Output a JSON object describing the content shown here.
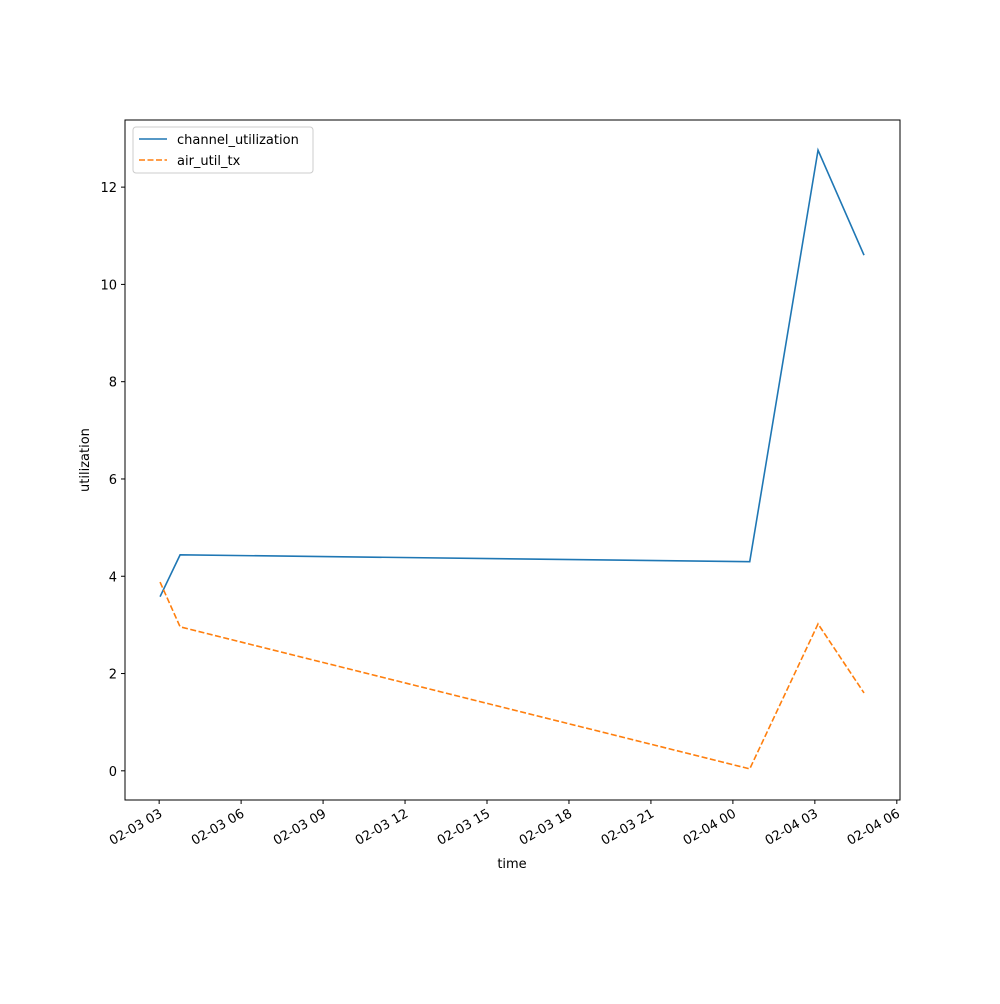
{
  "chart_data": {
    "type": "line",
    "xlabel": "time",
    "ylabel": "utilization",
    "x": [
      "02-03 03:02",
      "02-03 03:46",
      "02-04 00:37",
      "02-04 03:07",
      "02-04 04:48"
    ],
    "series": [
      {
        "name": "channel_utilization",
        "color": "#1f77b4",
        "linestyle": "solid",
        "values": [
          3.58,
          4.44,
          4.3,
          12.76,
          10.6
        ]
      },
      {
        "name": "air_util_tx",
        "color": "#ff7f0e",
        "linestyle": "dashed",
        "values": [
          3.88,
          2.96,
          0.04,
          3.02,
          1.6
        ]
      }
    ],
    "xlim": [
      "02-03 01:45",
      "02-04 06:07"
    ],
    "xticks": [
      {
        "value": "02-03 03:00",
        "label": "02-03 03"
      },
      {
        "value": "02-03 06:00",
        "label": "02-03 06"
      },
      {
        "value": "02-03 09:00",
        "label": "02-03 09"
      },
      {
        "value": "02-03 12:00",
        "label": "02-03 12"
      },
      {
        "value": "02-03 15:00",
        "label": "02-03 15"
      },
      {
        "value": "02-03 18:00",
        "label": "02-03 18"
      },
      {
        "value": "02-03 21:00",
        "label": "02-03 21"
      },
      {
        "value": "02-04 00:00",
        "label": "02-04 00"
      },
      {
        "value": "02-04 03:00",
        "label": "02-04 03"
      },
      {
        "value": "02-04 06:00",
        "label": "02-04 06"
      }
    ],
    "ylim": [
      -0.6,
      13.38
    ],
    "yticks": [
      0,
      2,
      4,
      6,
      8,
      10,
      12
    ],
    "grid": false,
    "legend": "upper left"
  }
}
